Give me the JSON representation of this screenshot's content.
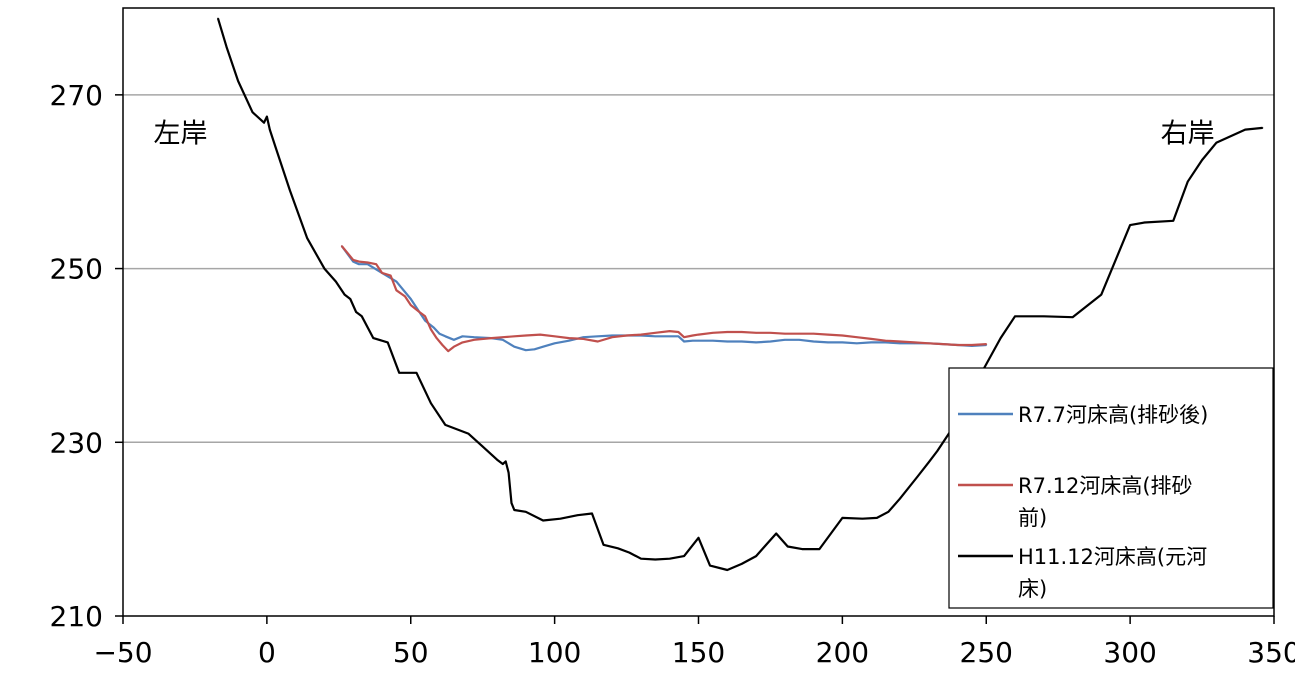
{
  "chart_data": {
    "type": "line",
    "title": "",
    "xlabel": "",
    "ylabel": "",
    "xlim": [
      -50,
      350
    ],
    "ylim": [
      210,
      280
    ],
    "xticks": [
      -50,
      0,
      50,
      100,
      150,
      200,
      250,
      300,
      350
    ],
    "yticks": [
      210,
      230,
      250,
      270
    ],
    "grid": "horizontal",
    "legend_position": "bottom-right",
    "annotations": [
      {
        "text": "左岸",
        "x": -30,
        "y": 264.5
      },
      {
        "text": "右岸",
        "x": 320,
        "y": 264.5
      }
    ],
    "series": [
      {
        "name": "R7.7河床高(排砂後)",
        "color": "#4f81bd",
        "x": [
          26,
          30,
          32,
          35,
          40,
          45,
          50,
          55,
          58,
          60,
          62,
          65,
          68,
          72,
          78,
          82,
          86,
          90,
          93,
          96,
          100,
          105,
          110,
          115,
          120,
          125,
          130,
          135,
          140,
          143,
          145,
          148,
          150,
          155,
          160,
          165,
          170,
          175,
          180,
          185,
          190,
          195,
          200,
          205,
          210,
          215,
          220,
          225,
          230,
          235,
          240,
          245,
          250
        ],
        "y": [
          252.6,
          250.8,
          250.5,
          250.5,
          249.5,
          248.5,
          246.5,
          244.0,
          243.2,
          242.5,
          242.2,
          241.8,
          242.2,
          242.1,
          242.0,
          241.8,
          241.0,
          240.6,
          240.7,
          241.0,
          241.4,
          241.7,
          242.1,
          242.2,
          242.3,
          242.3,
          242.3,
          242.2,
          242.2,
          242.2,
          241.6,
          241.7,
          241.7,
          241.7,
          241.6,
          241.6,
          241.5,
          241.6,
          241.8,
          241.8,
          241.6,
          241.5,
          241.5,
          241.4,
          241.5,
          241.5,
          241.4,
          241.4,
          241.4,
          241.3,
          241.2,
          241.1,
          241.2
        ]
      },
      {
        "name": "R7.12河床高(排砂前)",
        "color": "#c0504d",
        "x": [
          26,
          30,
          32,
          35,
          38,
          40,
          43,
          45,
          48,
          50,
          53,
          55,
          57,
          59,
          61,
          63,
          65,
          68,
          72,
          78,
          82,
          86,
          90,
          95,
          100,
          105,
          110,
          115,
          120,
          125,
          130,
          135,
          140,
          143,
          145,
          148,
          150,
          155,
          160,
          165,
          170,
          175,
          180,
          185,
          190,
          195,
          200,
          205,
          210,
          215,
          220,
          225,
          230,
          235,
          240,
          245,
          250
        ],
        "y": [
          252.6,
          251.0,
          250.8,
          250.7,
          250.5,
          249.5,
          249.2,
          247.5,
          246.8,
          245.8,
          245.0,
          244.5,
          243.0,
          242.0,
          241.2,
          240.5,
          241.0,
          241.5,
          241.8,
          242.0,
          242.1,
          242.2,
          242.3,
          242.4,
          242.2,
          242.0,
          241.9,
          241.6,
          242.1,
          242.3,
          242.4,
          242.6,
          242.8,
          242.7,
          242.1,
          242.3,
          242.4,
          242.6,
          242.7,
          242.7,
          242.6,
          242.6,
          242.5,
          242.5,
          242.5,
          242.4,
          242.3,
          242.1,
          241.9,
          241.7,
          241.6,
          241.5,
          241.4,
          241.3,
          241.2,
          241.2,
          241.3
        ]
      },
      {
        "name": "H11.12河床高(元河床)",
        "color": "#000000",
        "x": [
          -17,
          -14,
          -10,
          -5,
          -1,
          0,
          1,
          3,
          8,
          14,
          20,
          24,
          27,
          29,
          31,
          33,
          37,
          42,
          46,
          52,
          57,
          62,
          70,
          75,
          80,
          82,
          83,
          84,
          85,
          86,
          90,
          96,
          102,
          108,
          113,
          117,
          122,
          126,
          130,
          135,
          140,
          145,
          150,
          154,
          160,
          165,
          170,
          177,
          181,
          186,
          192,
          200,
          207,
          212,
          216,
          220,
          226,
          230,
          233,
          240,
          245,
          250,
          255,
          260,
          270,
          280,
          290,
          300,
          305,
          315,
          320,
          325,
          330,
          340,
          346
        ],
        "y": [
          278.8,
          275.5,
          271.6,
          268.0,
          266.8,
          267.5,
          266.0,
          264.0,
          259.0,
          253.5,
          250.0,
          248.5,
          247.0,
          246.5,
          245.0,
          244.5,
          242.0,
          241.5,
          238.0,
          238.0,
          234.5,
          232.0,
          231.0,
          229.5,
          228.0,
          227.5,
          227.8,
          226.5,
          223.0,
          222.2,
          222.0,
          221.0,
          221.2,
          221.6,
          221.8,
          218.2,
          217.8,
          217.3,
          216.6,
          216.5,
          216.6,
          216.9,
          219.0,
          215.8,
          215.3,
          216.0,
          216.9,
          219.5,
          218.0,
          217.7,
          217.7,
          221.3,
          221.2,
          221.3,
          222.0,
          223.5,
          226.0,
          227.7,
          229.0,
          232.5,
          236.0,
          239.0,
          242.0,
          244.5,
          244.5,
          244.4,
          247.0,
          255.0,
          255.3,
          255.5,
          260.0,
          262.5,
          264.5,
          266.0,
          266.2
        ]
      }
    ]
  }
}
